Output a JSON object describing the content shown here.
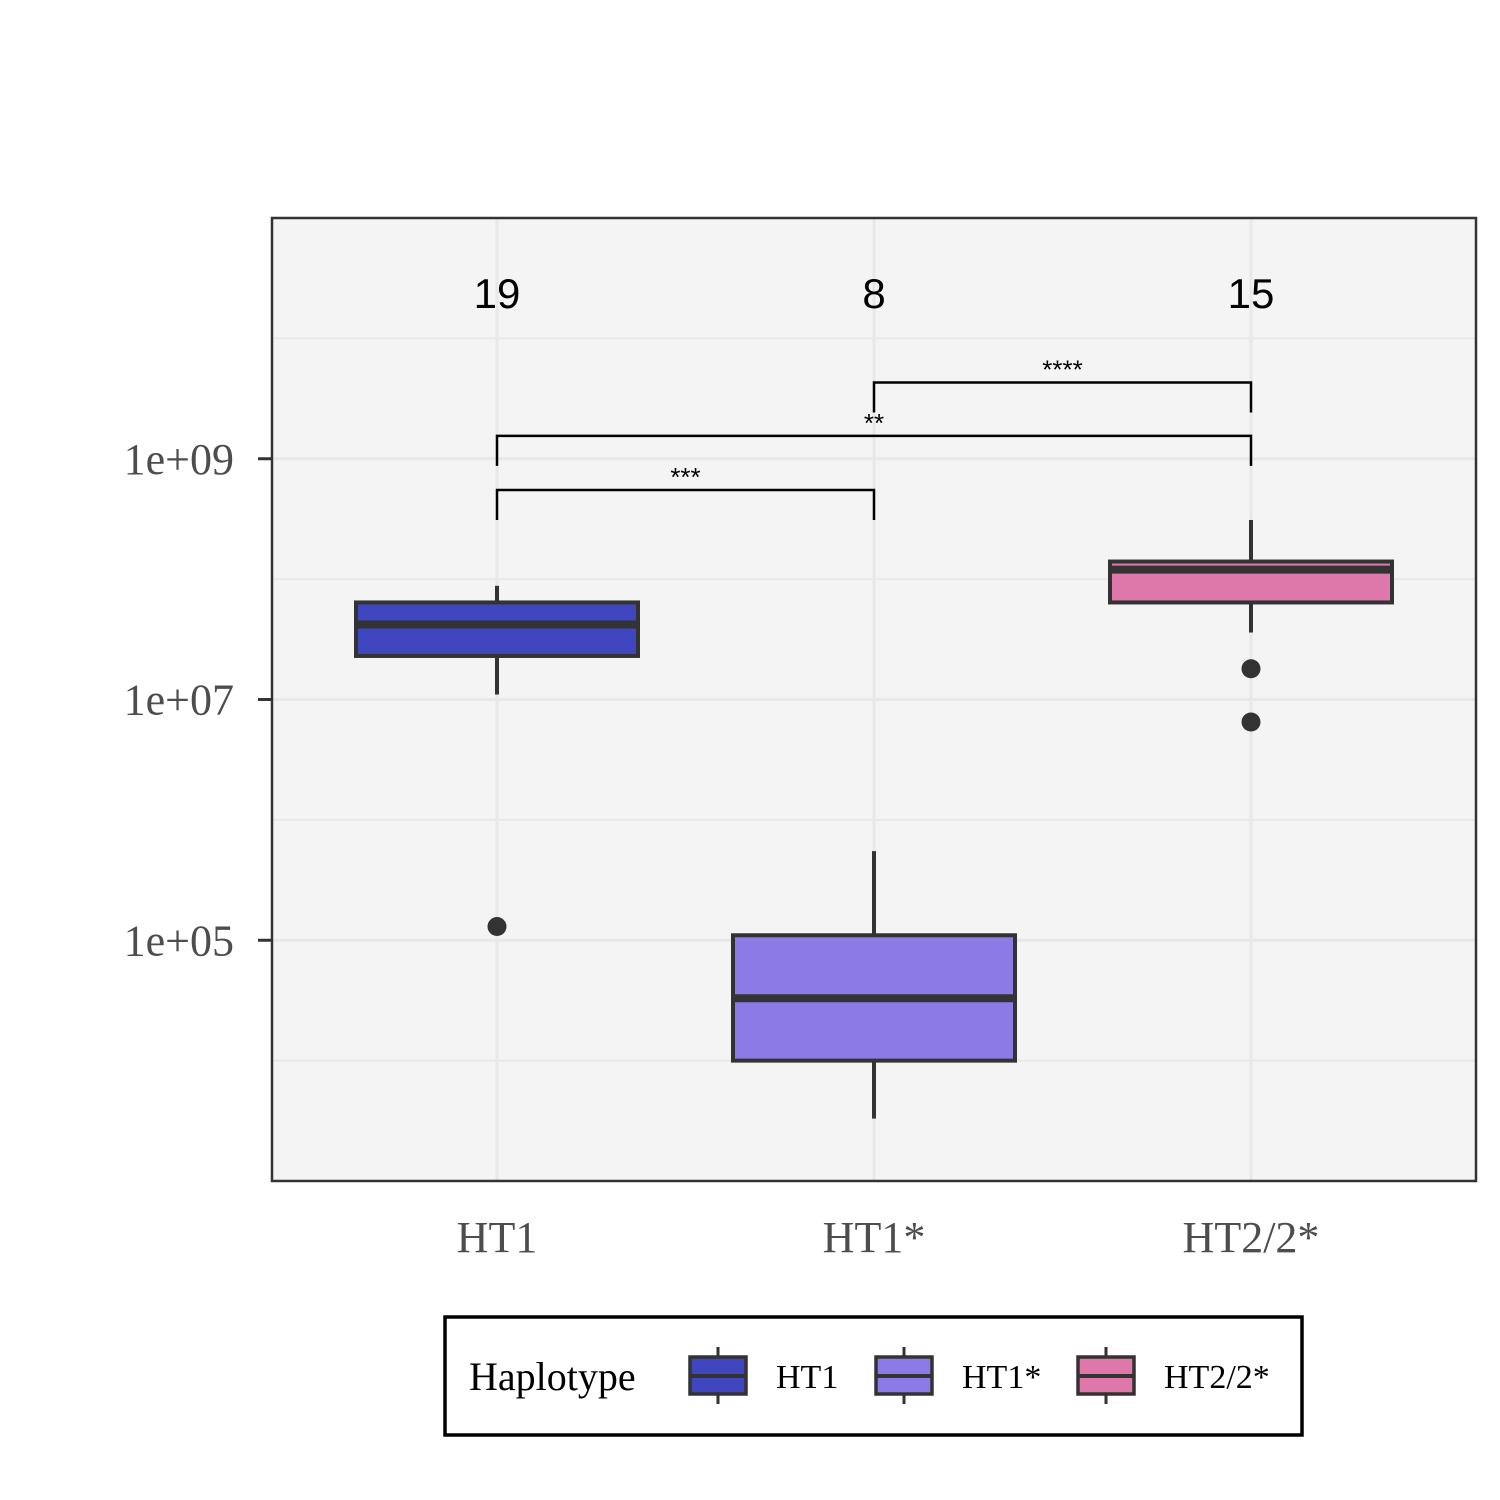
{
  "chart_data": {
    "type": "box",
    "title": "",
    "xlabel": "",
    "ylabel": "",
    "y_scale": "log10",
    "ylim": [
      1000.0,
      100000000000.0
    ],
    "y_ticks": [
      {
        "value": 1000000000.0,
        "label": "1e+09"
      },
      {
        "value": 10000000.0,
        "label": "1e+07"
      },
      {
        "value": 100000.0,
        "label": "1e+05"
      }
    ],
    "y_minor_gridlines": [
      10000000000.0,
      100000000.0,
      1000000.0,
      10000.0
    ],
    "grid": true,
    "categories": [
      "HT1",
      "HT1*",
      "HT2/2*"
    ],
    "boxes": [
      {
        "category": "HT1",
        "n": "19",
        "color": "#4046c0",
        "whisker_low": 11000000.0,
        "q1": 23000000.0,
        "median": 42000000.0,
        "q3": 64000000.0,
        "whisker_high": 88000000.0,
        "outliers": [
          130000.0
        ]
      },
      {
        "category": "HT1*",
        "n": "8",
        "color": "#8c7ae6",
        "whisker_low": 3300.0,
        "q1": 10000.0,
        "median": 33000.0,
        "q3": 110000.0,
        "whisker_high": 550000.0,
        "outliers": []
      },
      {
        "category": "HT2/2*",
        "n": "15",
        "color": "#de77aa",
        "whisker_low": 36000000.0,
        "q1": 64000000.0,
        "median": 120000000.0,
        "q3": 140000000.0,
        "whisker_high": 310000000.0,
        "outliers": [
          18000000.0,
          6500000.0
        ]
      }
    ],
    "significance": [
      {
        "from": "HT1",
        "to": "HT1*",
        "label": "***",
        "y": 550000000.0
      },
      {
        "from": "HT1",
        "to": "HT2/2*",
        "label": "**",
        "y": 1550000000.0
      },
      {
        "from": "HT1*",
        "to": "HT2/2*",
        "label": "****",
        "y": 4300000000.0
      }
    ],
    "legend": {
      "title": "Haplotype",
      "position": "bottom",
      "entries": [
        {
          "label": "HT1",
          "color": "#4046c0"
        },
        {
          "label": "HT1*",
          "color": "#8c7ae6"
        },
        {
          "label": "HT2/2*",
          "color": "#de77aa"
        }
      ]
    },
    "colors": {
      "panel_bg": "#f4f4f4",
      "grid": "#e8e8e8",
      "outline": "#333333"
    }
  }
}
